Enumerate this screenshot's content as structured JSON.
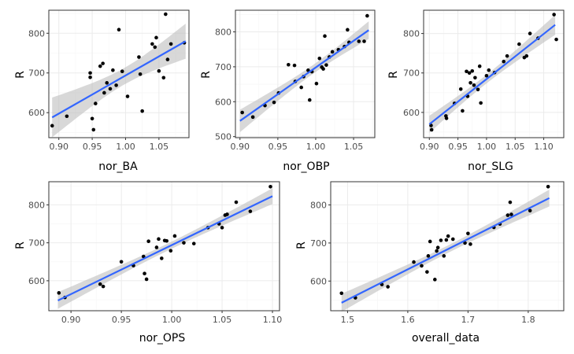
{
  "colors": {
    "point": "#000000",
    "trend_line": "#3366FF",
    "confidence_band": "#BEBEBE",
    "panel_border": "#333333",
    "grid_major": "#EBEBEB",
    "grid_minor": "#F5F5F5",
    "tick_text": "#4D4D4D"
  },
  "chart_data": [
    {
      "type": "scatter",
      "smoother": "linear fit with confidence band",
      "xlabel": "nor_BA",
      "ylabel": "R",
      "xlim": [
        0.885,
        1.095
      ],
      "ylim": [
        537,
        858
      ],
      "xticks": [
        0.9,
        0.95,
        1.0,
        1.05
      ],
      "xtick_labels": [
        "0.90",
        "0.95",
        "1.00",
        "1.05"
      ],
      "yticks": [
        600,
        700,
        800
      ],
      "ytick_labels": [
        "600",
        "700",
        "800"
      ],
      "fit": {
        "x": [
          0.89,
          1.09
        ],
        "y": [
          588,
          780
        ]
      },
      "points": [
        {
          "x": 0.89,
          "y": 567
        },
        {
          "x": 0.912,
          "y": 591
        },
        {
          "x": 0.947,
          "y": 700
        },
        {
          "x": 0.947,
          "y": 689
        },
        {
          "x": 0.95,
          "y": 585
        },
        {
          "x": 0.952,
          "y": 557
        },
        {
          "x": 0.955,
          "y": 623
        },
        {
          "x": 0.962,
          "y": 717
        },
        {
          "x": 0.966,
          "y": 724
        },
        {
          "x": 0.968,
          "y": 650
        },
        {
          "x": 0.972,
          "y": 675
        },
        {
          "x": 0.977,
          "y": 660
        },
        {
          "x": 0.981,
          "y": 707
        },
        {
          "x": 0.986,
          "y": 669
        },
        {
          "x": 0.99,
          "y": 809
        },
        {
          "x": 0.995,
          "y": 704
        },
        {
          "x": 1.003,
          "y": 641
        },
        {
          "x": 1.02,
          "y": 740
        },
        {
          "x": 1.022,
          "y": 697
        },
        {
          "x": 1.025,
          "y": 604
        },
        {
          "x": 1.04,
          "y": 773
        },
        {
          "x": 1.044,
          "y": 765
        },
        {
          "x": 1.046,
          "y": 789
        },
        {
          "x": 1.05,
          "y": 705
        },
        {
          "x": 1.057,
          "y": 688
        },
        {
          "x": 1.06,
          "y": 848
        },
        {
          "x": 1.063,
          "y": 734
        },
        {
          "x": 1.068,
          "y": 773
        },
        {
          "x": 1.088,
          "y": 776
        }
      ]
    },
    {
      "type": "scatter",
      "smoother": "linear fit with confidence band",
      "xlabel": "nor_OBP",
      "ylabel": "R",
      "xlim": [
        0.894,
        1.078
      ],
      "ylim": [
        497,
        862
      ],
      "xticks": [
        0.9,
        0.95,
        1.0,
        1.05
      ],
      "xtick_labels": [
        "0.90",
        "0.95",
        "1.00",
        "1.05"
      ],
      "yticks": [
        500,
        600,
        700,
        800
      ],
      "ytick_labels": [
        "500",
        "600",
        "700",
        "800"
      ],
      "fit": {
        "x": [
          0.9,
          1.07
        ],
        "y": [
          545,
          805
        ]
      },
      "points": [
        {
          "x": 0.903,
          "y": 569
        },
        {
          "x": 0.917,
          "y": 556
        },
        {
          "x": 0.933,
          "y": 589
        },
        {
          "x": 0.945,
          "y": 598
        },
        {
          "x": 0.951,
          "y": 625
        },
        {
          "x": 0.964,
          "y": 706
        },
        {
          "x": 0.972,
          "y": 704
        },
        {
          "x": 0.973,
          "y": 658
        },
        {
          "x": 0.981,
          "y": 641
        },
        {
          "x": 0.984,
          "y": 672
        },
        {
          "x": 0.99,
          "y": 690
        },
        {
          "x": 0.992,
          "y": 605
        },
        {
          "x": 0.995,
          "y": 686
        },
        {
          "x": 1.001,
          "y": 652
        },
        {
          "x": 1.005,
          "y": 724
        },
        {
          "x": 1.008,
          "y": 699
        },
        {
          "x": 1.01,
          "y": 694
        },
        {
          "x": 1.012,
          "y": 788
        },
        {
          "x": 1.014,
          "y": 705
        },
        {
          "x": 1.018,
          "y": 728
        },
        {
          "x": 1.022,
          "y": 743
        },
        {
          "x": 1.03,
          "y": 749
        },
        {
          "x": 1.038,
          "y": 758
        },
        {
          "x": 1.042,
          "y": 806
        },
        {
          "x": 1.044,
          "y": 770
        },
        {
          "x": 1.057,
          "y": 773
        },
        {
          "x": 1.064,
          "y": 773
        },
        {
          "x": 1.068,
          "y": 846
        }
      ]
    },
    {
      "type": "scatter",
      "smoother": "linear fit with confidence band",
      "xlabel": "nor_SLG",
      "ylabel": "R",
      "xlim": [
        0.89,
        1.135
      ],
      "ylim": [
        536,
        859
      ],
      "xticks": [
        0.9,
        0.95,
        1.0,
        1.05,
        1.1
      ],
      "xtick_labels": [
        "0.90",
        "0.95",
        "1.00",
        "1.05",
        "1.10"
      ],
      "yticks": [
        600,
        700,
        800
      ],
      "ytick_labels": [
        "600",
        "700",
        "800"
      ],
      "fit": {
        "x": [
          0.9,
          1.12
        ],
        "y": [
          570,
          822
        ]
      },
      "points": [
        {
          "x": 0.903,
          "y": 567
        },
        {
          "x": 0.904,
          "y": 556
        },
        {
          "x": 0.929,
          "y": 591
        },
        {
          "x": 0.93,
          "y": 585
        },
        {
          "x": 0.944,
          "y": 623
        },
        {
          "x": 0.955,
          "y": 659
        },
        {
          "x": 0.958,
          "y": 604
        },
        {
          "x": 0.965,
          "y": 704
        },
        {
          "x": 0.967,
          "y": 641
        },
        {
          "x": 0.97,
          "y": 700
        },
        {
          "x": 0.972,
          "y": 675
        },
        {
          "x": 0.975,
          "y": 705
        },
        {
          "x": 0.978,
          "y": 669
        },
        {
          "x": 0.98,
          "y": 688
        },
        {
          "x": 0.985,
          "y": 658
        },
        {
          "x": 0.988,
          "y": 717
        },
        {
          "x": 0.99,
          "y": 624
        },
        {
          "x": 1.0,
          "y": 693
        },
        {
          "x": 1.004,
          "y": 707
        },
        {
          "x": 1.014,
          "y": 701
        },
        {
          "x": 1.03,
          "y": 729
        },
        {
          "x": 1.036,
          "y": 743
        },
        {
          "x": 1.057,
          "y": 773
        },
        {
          "x": 1.066,
          "y": 739
        },
        {
          "x": 1.07,
          "y": 743
        },
        {
          "x": 1.076,
          "y": 800
        },
        {
          "x": 1.09,
          "y": 788
        },
        {
          "x": 1.118,
          "y": 848
        },
        {
          "x": 1.122,
          "y": 785
        }
      ]
    },
    {
      "type": "scatter",
      "smoother": "linear fit with confidence band",
      "xlabel": "nor_OPS",
      "ylabel": "R",
      "xlim": [
        0.878,
        1.107
      ],
      "ylim": [
        521,
        861
      ],
      "xticks": [
        0.9,
        0.95,
        1.0,
        1.05,
        1.1
      ],
      "xtick_labels": [
        "0.90",
        "0.95",
        "1.00",
        "1.05",
        "1.10"
      ],
      "yticks": [
        600,
        700,
        800
      ],
      "ytick_labels": [
        "600",
        "700",
        "800"
      ],
      "fit": {
        "x": [
          0.887,
          1.1
        ],
        "y": [
          548,
          823
        ]
      },
      "points": [
        {
          "x": 0.888,
          "y": 568
        },
        {
          "x": 0.894,
          "y": 556
        },
        {
          "x": 0.929,
          "y": 591
        },
        {
          "x": 0.932,
          "y": 585
        },
        {
          "x": 0.95,
          "y": 650
        },
        {
          "x": 0.962,
          "y": 640
        },
        {
          "x": 0.972,
          "y": 664
        },
        {
          "x": 0.973,
          "y": 619
        },
        {
          "x": 0.975,
          "y": 604
        },
        {
          "x": 0.977,
          "y": 704
        },
        {
          "x": 0.985,
          "y": 688
        },
        {
          "x": 0.987,
          "y": 710
        },
        {
          "x": 0.99,
          "y": 659
        },
        {
          "x": 0.993,
          "y": 706
        },
        {
          "x": 0.995,
          "y": 705
        },
        {
          "x": 0.999,
          "y": 679
        },
        {
          "x": 1.003,
          "y": 718
        },
        {
          "x": 1.012,
          "y": 700
        },
        {
          "x": 1.022,
          "y": 698
        },
        {
          "x": 1.036,
          "y": 740
        },
        {
          "x": 1.047,
          "y": 750
        },
        {
          "x": 1.05,
          "y": 740
        },
        {
          "x": 1.053,
          "y": 773
        },
        {
          "x": 1.055,
          "y": 775
        },
        {
          "x": 1.064,
          "y": 807
        },
        {
          "x": 1.078,
          "y": 783
        },
        {
          "x": 1.098,
          "y": 848
        }
      ]
    },
    {
      "type": "scatter",
      "smoother": "linear fit with confidence band",
      "xlabel": "overall_data",
      "ylabel": "R",
      "xlim": [
        1.472,
        1.859
      ],
      "ylim": [
        522,
        861
      ],
      "xticks": [
        1.5,
        1.6,
        1.7,
        1.8
      ],
      "xtick_labels": [
        "1.5",
        "1.6",
        "1.7",
        "1.8"
      ],
      "yticks": [
        600,
        700,
        800
      ],
      "ytick_labels": [
        "600",
        "700",
        "800"
      ],
      "fit": {
        "x": [
          1.49,
          1.835
        ],
        "y": [
          543,
          818
        ]
      },
      "points": [
        {
          "x": 1.49,
          "y": 568
        },
        {
          "x": 1.513,
          "y": 556
        },
        {
          "x": 1.557,
          "y": 591
        },
        {
          "x": 1.567,
          "y": 585
        },
        {
          "x": 1.61,
          "y": 650
        },
        {
          "x": 1.623,
          "y": 640
        },
        {
          "x": 1.632,
          "y": 624
        },
        {
          "x": 1.634,
          "y": 666
        },
        {
          "x": 1.637,
          "y": 704
        },
        {
          "x": 1.645,
          "y": 604
        },
        {
          "x": 1.648,
          "y": 679
        },
        {
          "x": 1.65,
          "y": 688
        },
        {
          "x": 1.655,
          "y": 707
        },
        {
          "x": 1.66,
          "y": 666
        },
        {
          "x": 1.664,
          "y": 708
        },
        {
          "x": 1.667,
          "y": 718
        },
        {
          "x": 1.675,
          "y": 710
        },
        {
          "x": 1.695,
          "y": 700
        },
        {
          "x": 1.7,
          "y": 725
        },
        {
          "x": 1.704,
          "y": 697
        },
        {
          "x": 1.743,
          "y": 741
        },
        {
          "x": 1.753,
          "y": 750
        },
        {
          "x": 1.766,
          "y": 773
        },
        {
          "x": 1.77,
          "y": 807
        },
        {
          "x": 1.772,
          "y": 775
        },
        {
          "x": 1.803,
          "y": 785
        },
        {
          "x": 1.833,
          "y": 848
        }
      ]
    }
  ]
}
